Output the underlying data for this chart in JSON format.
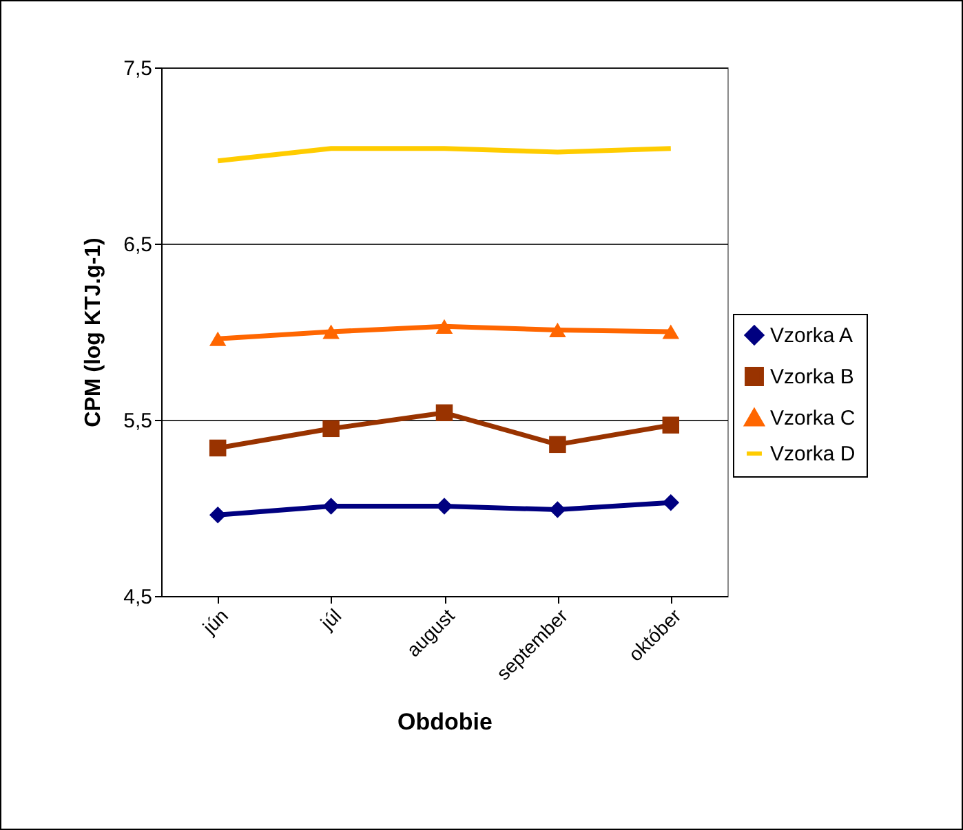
{
  "chart_data": {
    "type": "line",
    "xlabel": "Obdobie",
    "ylabel": "CPM (log KTJ.g-1)",
    "categories": [
      "jún",
      "júl",
      "august",
      "september",
      "október"
    ],
    "series": [
      {
        "name": "Vzorka A",
        "color": "#000080",
        "marker": "diamond",
        "values": [
          4.96,
          5.01,
          5.01,
          4.99,
          5.03
        ]
      },
      {
        "name": "Vzorka B",
        "color": "#993300",
        "marker": "square",
        "values": [
          5.34,
          5.45,
          5.54,
          5.36,
          5.47
        ]
      },
      {
        "name": "Vzorka C",
        "color": "#ff6600",
        "marker": "triangle",
        "values": [
          5.96,
          6.0,
          6.03,
          6.01,
          6.0
        ]
      },
      {
        "name": "Vzorka D",
        "color": "#ffcc00",
        "marker": "none",
        "values": [
          6.97,
          7.04,
          7.04,
          7.02,
          7.04
        ]
      }
    ],
    "ylim": [
      4.5,
      7.5
    ],
    "yticks": [
      {
        "value": 4.5,
        "label": "4,5"
      },
      {
        "value": 5.5,
        "label": "5,5"
      },
      {
        "value": 6.5,
        "label": "6,5"
      },
      {
        "value": 7.5,
        "label": "7,5"
      }
    ],
    "grid": "y",
    "legend": "right"
  }
}
